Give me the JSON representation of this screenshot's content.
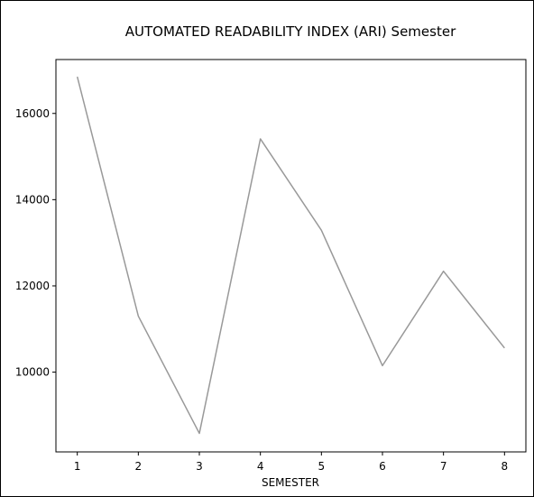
{
  "chart_data": {
    "type": "line",
    "title": "AUTOMATED READABILITY INDEX (ARI) Semester",
    "xlabel": "SEMESTER",
    "ylabel": "",
    "x": [
      1,
      2,
      3,
      4,
      5,
      6,
      7,
      8
    ],
    "series": [
      {
        "values": [
          16850,
          11300,
          8580,
          15410,
          13290,
          10150,
          12340,
          10560
        ],
        "color": "#999999"
      }
    ],
    "xticks": [
      "1",
      "2",
      "3",
      "4",
      "5",
      "6",
      "7",
      "8"
    ],
    "yticks": [
      "10000",
      "12000",
      "14000",
      "16000"
    ],
    "xlim": [
      0.65,
      8.35
    ],
    "ylim": [
      8150,
      17250
    ],
    "grid": false,
    "legend": "none"
  }
}
